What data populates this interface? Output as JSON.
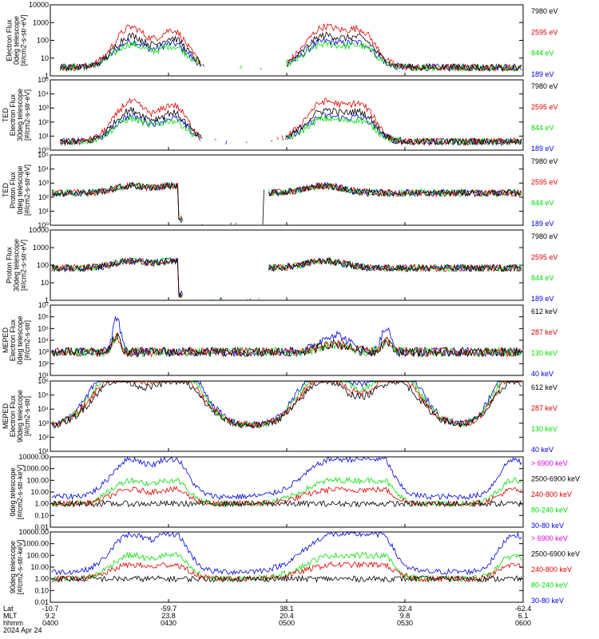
{
  "colors": {
    "black": "#000000",
    "red": "#e00000",
    "green": "#00e000",
    "blue": "#0000e0",
    "magenta": "#e000e0"
  },
  "chart_data": [
    {
      "type": "line",
      "ylabel": [
        "Electron Flux",
        "0deg telescope",
        "[#/cm2-s-str-eV]"
      ],
      "yscale": "log",
      "ylim": [
        1,
        10000
      ],
      "ticks": [
        {
          "v": 10000,
          "label": "10000"
        },
        {
          "v": 1000,
          "label": "1000"
        },
        {
          "v": 100,
          "label": "100"
        },
        {
          "v": 10,
          "label": "10"
        },
        {
          "v": 1,
          "label": "1"
        }
      ],
      "series": [
        {
          "name": "7980 eV",
          "color": "black"
        },
        {
          "name": "2595 eV",
          "color": "red"
        },
        {
          "name": "844 eV",
          "color": "green"
        },
        {
          "name": "189 eV",
          "color": "blue"
        }
      ]
    },
    {
      "type": "line",
      "ylabel": [
        "TED",
        "Electron Flux",
        "30deg telescope",
        "[#/cm2-s-str-eV]"
      ],
      "yscale": "log",
      "ylim": [
        1,
        100000
      ],
      "ticks": [
        {
          "v": 100000,
          "label": "10⁵"
        },
        {
          "v": 10000,
          "label": "10⁴"
        },
        {
          "v": 1000,
          "label": "10³"
        },
        {
          "v": 100,
          "label": "10²"
        },
        {
          "v": 10,
          "label": "10¹"
        },
        {
          "v": 1,
          "label": "10⁰"
        }
      ],
      "series": [
        {
          "name": "7980 eV",
          "color": "black"
        },
        {
          "name": "2595 eV",
          "color": "red"
        },
        {
          "name": "844 eV",
          "color": "green"
        },
        {
          "name": "189 eV",
          "color": "blue"
        }
      ]
    },
    {
      "type": "line",
      "ylabel": [
        "TED",
        "Proton Flux",
        "0deg telescope",
        "[#/cm2-s-str-eV]"
      ],
      "yscale": "log",
      "ylim": [
        1,
        100000
      ],
      "ticks": [
        {
          "v": 100000,
          "label": "10⁵"
        },
        {
          "v": 10000,
          "label": "10⁴"
        },
        {
          "v": 1000,
          "label": "10³"
        },
        {
          "v": 100,
          "label": "10²"
        },
        {
          "v": 10,
          "label": "10¹"
        },
        {
          "v": 1,
          "label": "10⁰"
        }
      ],
      "series": [
        {
          "name": "7980 eV",
          "color": "black"
        },
        {
          "name": "2595 eV",
          "color": "red"
        },
        {
          "name": "844 eV",
          "color": "green"
        },
        {
          "name": "189 eV",
          "color": "blue"
        }
      ]
    },
    {
      "type": "line",
      "ylabel": [
        "Proton Flux",
        "30deg telescope",
        "[#/cm2-s-str-eV]"
      ],
      "yscale": "log",
      "ylim": [
        1,
        10000
      ],
      "ticks": [
        {
          "v": 10000,
          "label": "10000"
        },
        {
          "v": 1000,
          "label": "1000"
        },
        {
          "v": 100,
          "label": "100"
        },
        {
          "v": 10,
          "label": "10"
        },
        {
          "v": 1,
          "label": "1"
        }
      ],
      "series": [
        {
          "name": "7980 eV",
          "color": "black"
        },
        {
          "name": "2595 eV",
          "color": "red"
        },
        {
          "name": "844 eV",
          "color": "green"
        },
        {
          "name": "189 eV",
          "color": "blue"
        }
      ]
    },
    {
      "type": "line",
      "ylabel": [
        "MEPED",
        "Electron Flux",
        "0deg telescope",
        "[#/cm2-s-str]"
      ],
      "yscale": "log",
      "ylim": [
        10,
        10000000
      ],
      "ticks": [
        {
          "v": 10000000,
          "label": "10⁷"
        },
        {
          "v": 1000000,
          "label": "10⁶"
        },
        {
          "v": 100000,
          "label": "10⁵"
        },
        {
          "v": 10000,
          "label": "10⁴"
        },
        {
          "v": 1000,
          "label": "10³"
        },
        {
          "v": 100,
          "label": "10²"
        },
        {
          "v": 10,
          "label": "10¹"
        }
      ],
      "series": [
        {
          "name": "612 keV",
          "color": "black"
        },
        {
          "name": "287 keV",
          "color": "red"
        },
        {
          "name": "130 keV",
          "color": "green"
        },
        {
          "name": "40 keV",
          "color": "blue"
        }
      ]
    },
    {
      "type": "line",
      "ylabel": [
        "MEPED",
        "Electron Flux",
        "90deg telescope",
        "[#/cm2-s-str]"
      ],
      "yscale": "log",
      "ylim": [
        10,
        1000000
      ],
      "ticks": [
        {
          "v": 1000000,
          "label": "10⁶"
        },
        {
          "v": 100000,
          "label": "10⁵"
        },
        {
          "v": 10000,
          "label": "10⁴"
        },
        {
          "v": 1000,
          "label": "10³"
        },
        {
          "v": 100,
          "label": "10²"
        },
        {
          "v": 10,
          "label": "10¹"
        }
      ],
      "series": [
        {
          "name": "612 keV",
          "color": "black"
        },
        {
          "name": "287 keV",
          "color": "red"
        },
        {
          "name": "130 keV",
          "color": "green"
        },
        {
          "name": "40 keV",
          "color": "blue"
        }
      ]
    },
    {
      "type": "line",
      "ylabel": [
        "0deg telescope",
        "[#/cm2-s-str-keV]"
      ],
      "yscale": "log",
      "ylim": [
        0.01,
        10000
      ],
      "ticks": [
        {
          "v": 10000,
          "label": "10000.00"
        },
        {
          "v": 1000,
          "label": "1000.00"
        },
        {
          "v": 100,
          "label": "100.00"
        },
        {
          "v": 10,
          "label": "10.00"
        },
        {
          "v": 1,
          "label": "1.00"
        },
        {
          "v": 0.1,
          "label": "0.10"
        },
        {
          "v": 0.01,
          "label": "0.01"
        }
      ],
      "series": [
        {
          "name": "> 6900 keV",
          "color": "magenta"
        },
        {
          "name": "2500-6900 keV",
          "color": "black"
        },
        {
          "name": "240-800 keV",
          "color": "red"
        },
        {
          "name": "80-240 keV",
          "color": "green"
        },
        {
          "name": "30-80 keV",
          "color": "blue"
        }
      ]
    },
    {
      "type": "line",
      "ylabel": [
        "90deg telescope",
        "[#/cm2-s-str-keV]"
      ],
      "yscale": "log",
      "ylim": [
        0.01,
        10000
      ],
      "ticks": [
        {
          "v": 10000,
          "label": "10000.00"
        },
        {
          "v": 1000,
          "label": "1000.00"
        },
        {
          "v": 100,
          "label": "100.00"
        },
        {
          "v": 10,
          "label": "10.00"
        },
        {
          "v": 1,
          "label": "1.00"
        },
        {
          "v": 0.1,
          "label": "0.10"
        },
        {
          "v": 0.01,
          "label": "0.01"
        }
      ],
      "series": [
        {
          "name": "> 6900 keV",
          "color": "magenta"
        },
        {
          "name": "2500-6900 keV",
          "color": "black"
        },
        {
          "name": "240-800 keV",
          "color": "red"
        },
        {
          "name": "80-240 keV",
          "color": "green"
        },
        {
          "name": "30-80 keV",
          "color": "blue"
        }
      ]
    }
  ],
  "xaxis": {
    "row_labels": [
      "Lat",
      "MLT",
      "hhmm",
      "2024 Apr 24"
    ],
    "ticks": [
      {
        "time": "0400",
        "lat": "-10.7",
        "mlt": "9.2"
      },
      {
        "time": "0430",
        "lat": "-59.7",
        "mlt": "23.8"
      },
      {
        "time": "0500",
        "lat": "38.1",
        "mlt": "20.4"
      },
      {
        "time": "0530",
        "lat": "32.4",
        "mlt": "9.8"
      },
      {
        "time": "0600",
        "lat": "-62.4",
        "mlt": "6.1"
      }
    ]
  }
}
